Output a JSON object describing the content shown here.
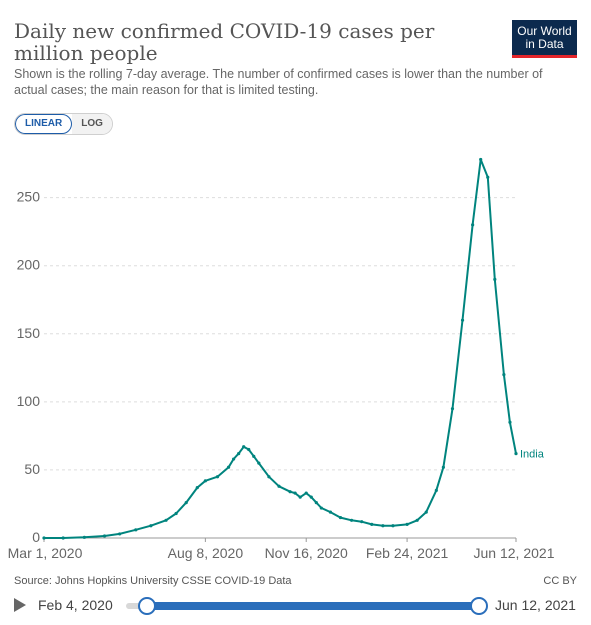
{
  "header": {
    "title": "Daily new confirmed COVID-19 cases per million people",
    "subtitle": "Shown is the rolling 7-day average. The number of confirmed cases is lower than the number of actual cases; the main reason for that is limited testing.",
    "logo_line1": "Our World",
    "logo_line2": "in Data"
  },
  "scale_toggle": {
    "linear": "LINEAR",
    "log": "LOG",
    "selected": "LINEAR"
  },
  "colors": {
    "series": "#00847e",
    "grid": "#dddddd",
    "axis_text": "#666666",
    "range": "#2a6ebb"
  },
  "chart_data": {
    "type": "line",
    "title": "Daily new confirmed COVID-19 cases per million people",
    "x_start": "Mar 1, 2020",
    "x_end": "Jun 12, 2021",
    "x_ticks": [
      "Mar 1, 2020",
      "Aug 8, 2020",
      "Nov 16, 2020",
      "Feb 24, 2021",
      "Jun 12, 2021"
    ],
    "y_ticks": [
      0,
      50,
      100,
      150,
      200,
      250
    ],
    "ylim": [
      0,
      285
    ],
    "grid": true,
    "series": [
      {
        "name": "India",
        "x": [
          "2020-03-01",
          "2020-03-20",
          "2020-04-10",
          "2020-04-30",
          "2020-05-15",
          "2020-05-31",
          "2020-06-15",
          "2020-06-30",
          "2020-07-10",
          "2020-07-20",
          "2020-07-31",
          "2020-08-08",
          "2020-08-20",
          "2020-08-31",
          "2020-09-05",
          "2020-09-10",
          "2020-09-15",
          "2020-09-20",
          "2020-09-25",
          "2020-09-30",
          "2020-10-10",
          "2020-10-20",
          "2020-10-31",
          "2020-11-05",
          "2020-11-10",
          "2020-11-16",
          "2020-11-21",
          "2020-11-26",
          "2020-12-01",
          "2020-12-10",
          "2020-12-20",
          "2020-12-31",
          "2021-01-10",
          "2021-01-20",
          "2021-01-31",
          "2021-02-10",
          "2021-02-24",
          "2021-03-06",
          "2021-03-15",
          "2021-03-25",
          "2021-04-01",
          "2021-04-10",
          "2021-04-20",
          "2021-04-30",
          "2021-05-08",
          "2021-05-15",
          "2021-05-22",
          "2021-05-31",
          "2021-06-06",
          "2021-06-12"
        ],
        "y": [
          0,
          0,
          0.5,
          1.5,
          3,
          6,
          9,
          13,
          18,
          26,
          37,
          42,
          45,
          52,
          58,
          62,
          67,
          65,
          60,
          55,
          45,
          38,
          34,
          33,
          30,
          33,
          30,
          26,
          22,
          19,
          15,
          13,
          12,
          10,
          9,
          9,
          10,
          13,
          19,
          35,
          52,
          95,
          160,
          230,
          278,
          265,
          190,
          120,
          85,
          62
        ]
      }
    ]
  },
  "footer": {
    "source": "Source: Johns Hopkins University CSSE COVID-19 Data",
    "license": "CC BY"
  },
  "timeline": {
    "start_label": "Feb 4, 2020",
    "end_label": "Jun 12, 2021"
  }
}
